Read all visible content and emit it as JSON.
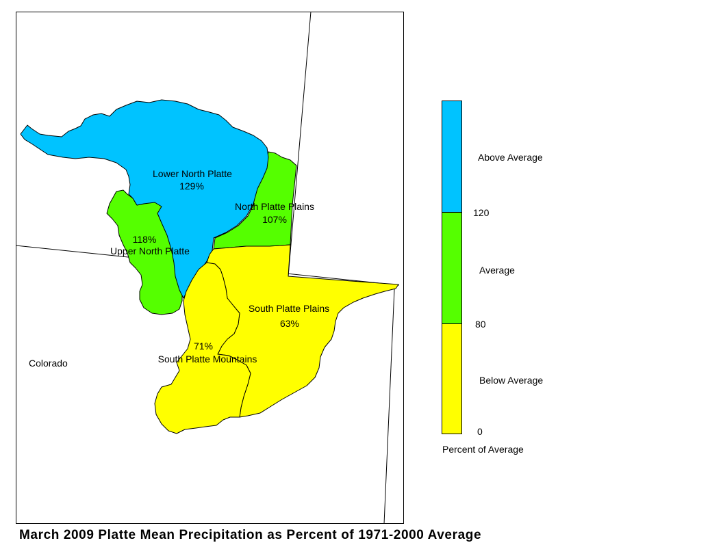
{
  "title": "March 2009 Platte Mean Precipitation as Percent of 1971-2000 Average",
  "state_label": "Colorado",
  "colors": {
    "above": "#00c3ff",
    "average": "#55ff00",
    "below": "#ffff00",
    "outline": "#000000"
  },
  "regions": {
    "lower_north_platte": {
      "name": "Lower North Platte",
      "percent": "129%",
      "value": 129,
      "category": "Above Average"
    },
    "north_platte_plains": {
      "name": "North Platte Plains",
      "percent": "107%",
      "value": 107,
      "category": "Average"
    },
    "upper_north_platte": {
      "name": "Upper North Platte",
      "percent": "118%",
      "value": 118,
      "category": "Average"
    },
    "south_platte_plains": {
      "name": "South Platte Plains",
      "percent": "63%",
      "value": 63,
      "category": "Below Average"
    },
    "south_platte_mountains": {
      "name": "South Platte Mountains",
      "percent": "71%",
      "value": 71,
      "category": "Below Average"
    }
  },
  "legend": {
    "title": "Percent of Average",
    "categories": [
      {
        "label": "Above Average",
        "color": "#00c3ff"
      },
      {
        "label": "Average",
        "color": "#55ff00"
      },
      {
        "label": "Below Average",
        "color": "#ffff00"
      }
    ],
    "breaks": [
      "120",
      "80",
      "0"
    ]
  }
}
